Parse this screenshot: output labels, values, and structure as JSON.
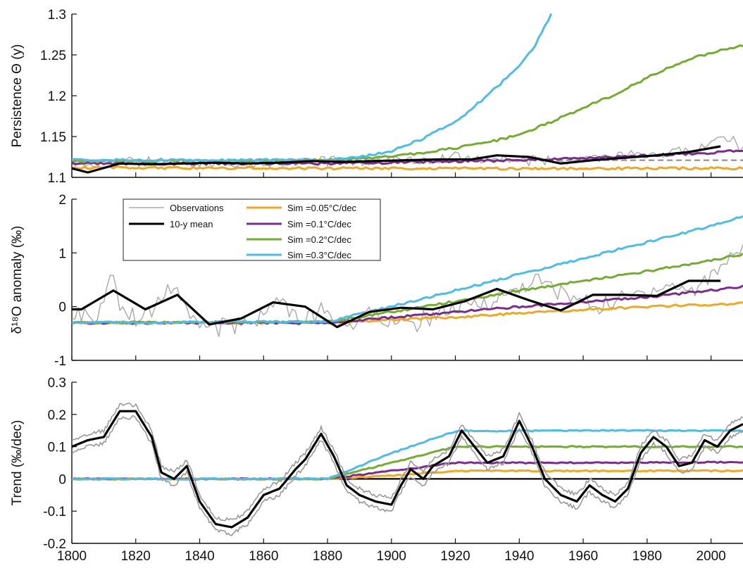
{
  "chart_data": [
    {
      "type": "line",
      "panel": "top",
      "ylabel": "Persistence Θ (y)",
      "xlim": [
        1800,
        2010
      ],
      "ylim": [
        1.1,
        1.3
      ],
      "yticks": [
        "1.1",
        "1.15",
        "1.2",
        "1.25",
        "1.3"
      ],
      "reference_line": {
        "y": 1.121,
        "style": "dashed"
      },
      "series": [
        {
          "name": "Observations",
          "style": "noisy-gray",
          "x": [
            1800,
            1820,
            1840,
            1860,
            1880,
            1900,
            1920,
            1940,
            1960,
            1980,
            1990,
            2000,
            2005,
            2010
          ],
          "y": [
            1.116,
            1.12,
            1.117,
            1.118,
            1.12,
            1.12,
            1.125,
            1.12,
            1.122,
            1.128,
            1.132,
            1.14,
            1.15,
            1.135
          ]
        },
        {
          "name": "10-y mean",
          "x": [
            1800,
            1805,
            1815,
            1825,
            1835,
            1845,
            1855,
            1865,
            1875,
            1885,
            1895,
            1905,
            1915,
            1925,
            1933,
            1943,
            1953,
            1963,
            1973,
            1983,
            1993,
            2003
          ],
          "y": [
            1.111,
            1.106,
            1.117,
            1.116,
            1.117,
            1.118,
            1.117,
            1.118,
            1.12,
            1.119,
            1.12,
            1.121,
            1.122,
            1.122,
            1.127,
            1.125,
            1.117,
            1.121,
            1.124,
            1.127,
            1.131,
            1.138
          ]
        },
        {
          "name": "Sim =0.05°C/dec",
          "x": [
            1800,
            1880,
            1920,
            1960,
            2010
          ],
          "y": [
            1.112,
            1.111,
            1.111,
            1.111,
            1.111
          ]
        },
        {
          "name": "Sim =0.1°C/dec",
          "x": [
            1800,
            1880,
            1910,
            1940,
            1970,
            2000,
            2010
          ],
          "y": [
            1.117,
            1.117,
            1.119,
            1.121,
            1.125,
            1.13,
            1.133
          ]
        },
        {
          "name": "Sim =0.2°C/dec",
          "x": [
            1800,
            1880,
            1890,
            1900,
            1910,
            1920,
            1930,
            1940,
            1950,
            1960,
            1970,
            1980,
            1990,
            2000,
            2010
          ],
          "y": [
            1.12,
            1.121,
            1.123,
            1.126,
            1.13,
            1.136,
            1.143,
            1.152,
            1.168,
            1.185,
            1.202,
            1.222,
            1.24,
            1.253,
            1.262
          ]
        },
        {
          "name": "Sim =0.3°C/dec",
          "x": [
            1800,
            1880,
            1890,
            1900,
            1910,
            1920,
            1930,
            1940,
            1945,
            1950
          ],
          "y": [
            1.121,
            1.121,
            1.125,
            1.132,
            1.148,
            1.168,
            1.2,
            1.236,
            1.262,
            1.3
          ]
        }
      ]
    },
    {
      "type": "line",
      "panel": "middle",
      "ylabel": "δ¹⁸O anomaly (‰)",
      "xlim": [
        1800,
        2010
      ],
      "ylim": [
        -1,
        2
      ],
      "yticks": [
        "-1",
        "0",
        "1",
        "2"
      ],
      "legend_position": "top-left",
      "series": [
        {
          "name": "Observations",
          "style": "noisy-gray",
          "x": [
            1800,
            1808,
            1812,
            1815,
            1822,
            1828,
            1832,
            1838,
            1845,
            1852,
            1858,
            1865,
            1872,
            1878,
            1885,
            1895,
            1905,
            1915,
            1925,
            1935,
            1945,
            1955,
            1965,
            1975,
            1985,
            1995,
            2005,
            2010
          ],
          "y": [
            -0.1,
            -0.3,
            0.75,
            0.1,
            -0.3,
            0.2,
            0.45,
            -0.3,
            -0.4,
            -0.35,
            -0.2,
            0.1,
            -0.3,
            -0.1,
            -0.35,
            -0.1,
            -0.4,
            -0.1,
            0.0,
            0.2,
            0.5,
            0.2,
            0.0,
            0.2,
            0.4,
            0.3,
            0.9,
            1.1
          ]
        },
        {
          "name": "10-y mean",
          "x": [
            1800,
            1803,
            1813,
            1823,
            1833,
            1843,
            1853,
            1863,
            1873,
            1883,
            1893,
            1903,
            1913,
            1923,
            1933,
            1943,
            1953,
            1963,
            1973,
            1983,
            1993,
            2003
          ],
          "y": [
            -0.05,
            -0.05,
            0.3,
            -0.05,
            0.22,
            -0.33,
            -0.22,
            0.08,
            0.0,
            -0.38,
            -0.1,
            -0.02,
            -0.05,
            0.1,
            0.33,
            0.12,
            -0.07,
            0.22,
            0.22,
            0.2,
            0.48,
            0.48
          ]
        },
        {
          "name": "Sim =0.05°C/dec",
          "x": [
            1800,
            1880,
            1900,
            1920,
            1940,
            1960,
            1980,
            2000,
            2010
          ],
          "y": [
            -0.3,
            -0.3,
            -0.24,
            -0.2,
            -0.12,
            -0.06,
            0.0,
            0.04,
            0.06
          ]
        },
        {
          "name": "Sim =0.1°C/dec",
          "x": [
            1800,
            1880,
            1900,
            1920,
            1940,
            1960,
            1980,
            2000,
            2010
          ],
          "y": [
            -0.3,
            -0.3,
            -0.2,
            -0.1,
            0.0,
            0.08,
            0.18,
            0.3,
            0.38
          ]
        },
        {
          "name": "Sim =0.2°C/dec",
          "x": [
            1800,
            1880,
            1900,
            1920,
            1940,
            1960,
            1980,
            2000,
            2010
          ],
          "y": [
            -0.3,
            -0.28,
            -0.1,
            0.1,
            0.3,
            0.48,
            0.66,
            0.86,
            0.98
          ]
        },
        {
          "name": "Sim =0.3°C/dec",
          "x": [
            1800,
            1880,
            1900,
            1920,
            1940,
            1960,
            1980,
            2000,
            2010
          ],
          "y": [
            -0.3,
            -0.28,
            0.0,
            0.3,
            0.6,
            0.9,
            1.2,
            1.5,
            1.68
          ]
        }
      ]
    },
    {
      "type": "line",
      "panel": "bottom",
      "ylabel": "Trend (‰/dec)",
      "xlabel": "",
      "xlim": [
        1800,
        2010
      ],
      "ylim": [
        -0.2,
        0.3
      ],
      "yticks": [
        "-0.2",
        "-0.1",
        "0",
        "0.1",
        "0.2",
        "0.3"
      ],
      "xticks": [
        "1800",
        "1820",
        "1840",
        "1860",
        "1880",
        "1900",
        "1920",
        "1940",
        "1960",
        "1980",
        "2000"
      ],
      "reference_line": {
        "y": 0,
        "style": "solid-black"
      },
      "series": [
        {
          "name": "Trend",
          "band": 0.02,
          "x": [
            1800,
            1805,
            1810,
            1815,
            1820,
            1825,
            1828,
            1832,
            1836,
            1840,
            1845,
            1850,
            1855,
            1860,
            1865,
            1870,
            1873,
            1878,
            1882,
            1886,
            1890,
            1895,
            1900,
            1903,
            1906,
            1910,
            1913,
            1918,
            1922,
            1926,
            1930,
            1935,
            1940,
            1944,
            1948,
            1953,
            1958,
            1962,
            1966,
            1970,
            1974,
            1978,
            1982,
            1986,
            1990,
            1994,
            1998,
            2002,
            2006,
            2010
          ],
          "y": [
            0.1,
            0.12,
            0.13,
            0.21,
            0.21,
            0.13,
            0.02,
            0.0,
            0.04,
            -0.07,
            -0.14,
            -0.15,
            -0.12,
            -0.05,
            -0.03,
            0.03,
            0.06,
            0.14,
            0.07,
            -0.02,
            -0.05,
            -0.07,
            -0.08,
            -0.02,
            0.03,
            0.0,
            0.04,
            0.07,
            0.15,
            0.1,
            0.05,
            0.07,
            0.18,
            0.1,
            0.0,
            -0.05,
            -0.07,
            -0.02,
            -0.05,
            -0.07,
            -0.03,
            0.08,
            0.13,
            0.1,
            0.04,
            0.05,
            0.12,
            0.1,
            0.15,
            0.17
          ]
        },
        {
          "name": "Sim =0.05°C/dec",
          "x": [
            1800,
            1880,
            1900,
            1920,
            1960,
            2010
          ],
          "y": [
            0.0,
            0.0,
            0.01,
            0.025,
            0.025,
            0.025
          ]
        },
        {
          "name": "Sim =0.1°C/dec",
          "x": [
            1800,
            1880,
            1900,
            1920,
            1960,
            2010
          ],
          "y": [
            0.0,
            0.0,
            0.025,
            0.05,
            0.05,
            0.052
          ]
        },
        {
          "name": "Sim =0.2°C/dec",
          "x": [
            1800,
            1880,
            1900,
            1920,
            1960,
            2010
          ],
          "y": [
            0.0,
            0.0,
            0.05,
            0.1,
            0.1,
            0.1
          ]
        },
        {
          "name": "Sim =0.3°C/dec",
          "x": [
            1800,
            1880,
            1900,
            1920,
            1960,
            2010
          ],
          "y": [
            0.0,
            0.0,
            0.08,
            0.148,
            0.15,
            0.15
          ]
        }
      ]
    }
  ],
  "legend": {
    "items": [
      {
        "label": "Observations",
        "color": "#a8a8a8"
      },
      {
        "label": "10-y mean",
        "color": "#000000"
      },
      {
        "label": "Sim =0.05°C/dec",
        "color": "#f0a820"
      },
      {
        "label": "Sim =0.1°C/dec",
        "color": "#7b2d8e"
      },
      {
        "label": "Sim =0.2°C/dec",
        "color": "#74ac2e"
      },
      {
        "label": "Sim =0.3°C/dec",
        "color": "#4cbde8"
      }
    ]
  },
  "colors": {
    "observations": "#a8a8a8",
    "mean": "#000000",
    "sim005": "#f0a820",
    "sim01": "#7b2d8e",
    "sim02": "#74ac2e",
    "sim03": "#4cbde8",
    "reference": "#888888"
  }
}
